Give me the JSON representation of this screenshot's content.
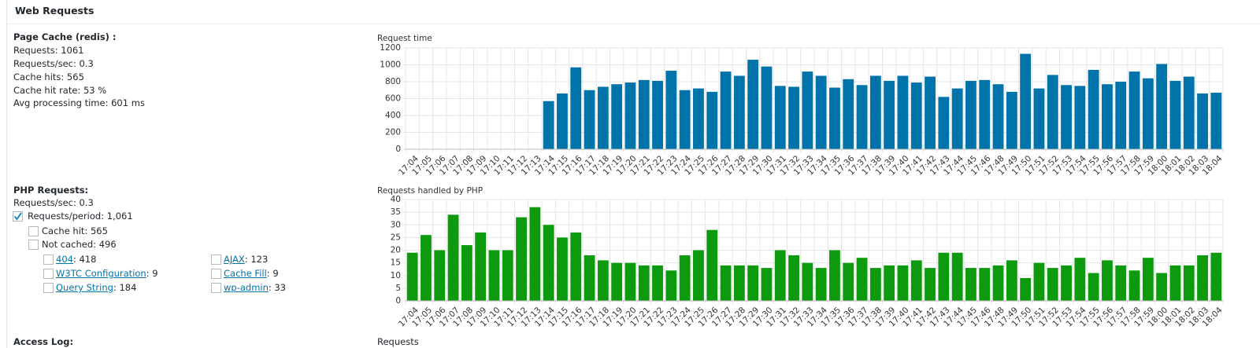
{
  "header": {
    "title": "Web Requests"
  },
  "page_cache": {
    "title": "Page Cache (redis) :",
    "lines": [
      "Requests: 1061",
      "Requests/sec: 0.3",
      "Cache hits: 565",
      "Cache hit rate: 53 %",
      "Avg processing time: 601 ms"
    ]
  },
  "php_requests": {
    "title": "PHP Requests:",
    "rate": "Requests/sec: 0.3",
    "period": "Requests/period: 1,061",
    "cache_hit": "Cache hit: 565",
    "not_cached": "Not cached: 496",
    "items": [
      {
        "link": "404",
        "text": ": 418"
      },
      {
        "link": "AJAX",
        "text": ": 123"
      },
      {
        "link": "W3TC Configuration",
        "text": ": 9"
      },
      {
        "link": "Cache Fill",
        "text": ": 9"
      },
      {
        "link": "Query String",
        "text": ": 184"
      },
      {
        "link": "wp-admin",
        "text": ": 33"
      }
    ]
  },
  "access_log": {
    "title": "Access Log:",
    "chart_title": "Requests"
  },
  "chart_data": [
    {
      "type": "bar",
      "title": "Request time",
      "color": "#0073aa",
      "grid": true,
      "categories": [
        "17:04",
        "17:05",
        "17:06",
        "17:07",
        "17:08",
        "17:09",
        "17:10",
        "17:11",
        "17:12",
        "17:13",
        "17:14",
        "17:15",
        "17:16",
        "17:17",
        "17:18",
        "17:19",
        "17:20",
        "17:21",
        "17:22",
        "17:23",
        "17:24",
        "17:25",
        "17:26",
        "17:27",
        "17:28",
        "17:29",
        "17:30",
        "17:31",
        "17:32",
        "17:33",
        "17:34",
        "17:35",
        "17:36",
        "17:37",
        "17:38",
        "17:39",
        "17:40",
        "17:41",
        "17:42",
        "17:43",
        "17:44",
        "17:45",
        "17:46",
        "17:48",
        "17:49",
        "17:50",
        "17:51",
        "17:52",
        "17:53",
        "17:54",
        "17:55",
        "17:56",
        "17:57",
        "17:58",
        "17:59",
        "18:00",
        "18:01",
        "18:02",
        "18:03",
        "18:04"
      ],
      "values": [
        null,
        null,
        null,
        null,
        null,
        null,
        null,
        null,
        null,
        null,
        570,
        660,
        970,
        700,
        740,
        770,
        790,
        820,
        810,
        930,
        700,
        720,
        680,
        920,
        870,
        1060,
        980,
        750,
        740,
        920,
        870,
        730,
        830,
        760,
        870,
        810,
        870,
        790,
        860,
        620,
        720,
        810,
        820,
        770,
        680,
        1130,
        720,
        880,
        760,
        750,
        940,
        770,
        800,
        920,
        840,
        1010,
        810,
        860,
        660,
        670
      ],
      "ylim": [
        0,
        1200
      ],
      "yticks": [
        0,
        200,
        400,
        600,
        800,
        1000,
        1200
      ]
    },
    {
      "type": "bar",
      "title": "Requests handled by PHP",
      "color": "#0e9a0e",
      "grid": true,
      "categories": [
        "17:04",
        "17:05",
        "17:06",
        "17:07",
        "17:08",
        "17:09",
        "17:10",
        "17:11",
        "17:12",
        "17:13",
        "17:14",
        "17:15",
        "17:16",
        "17:17",
        "17:18",
        "17:19",
        "17:20",
        "17:21",
        "17:22",
        "17:23",
        "17:24",
        "17:25",
        "17:26",
        "17:27",
        "17:28",
        "17:29",
        "17:30",
        "17:31",
        "17:32",
        "17:33",
        "17:34",
        "17:35",
        "17:36",
        "17:37",
        "17:38",
        "17:39",
        "17:40",
        "17:41",
        "17:42",
        "17:43",
        "17:44",
        "17:45",
        "17:46",
        "17:48",
        "17:49",
        "17:50",
        "17:51",
        "17:52",
        "17:53",
        "17:54",
        "17:55",
        "17:56",
        "17:57",
        "17:58",
        "17:59",
        "18:00",
        "18:01",
        "18:02",
        "18:03",
        "18:04"
      ],
      "values": [
        19,
        26,
        20,
        34,
        22,
        27,
        20,
        20,
        33,
        37,
        30,
        25,
        27,
        18,
        16,
        15,
        15,
        14,
        14,
        12,
        18,
        20,
        28,
        14,
        14,
        14,
        13,
        20,
        18,
        15,
        13,
        20,
        15,
        17,
        13,
        14,
        14,
        16,
        13,
        19,
        19,
        13,
        13,
        14,
        16,
        9,
        15,
        13,
        14,
        17,
        11,
        16,
        14,
        12,
        17,
        11,
        14,
        14,
        18,
        19
      ],
      "ylim": [
        0,
        40
      ],
      "yticks": [
        0,
        5,
        10,
        15,
        20,
        25,
        30,
        35,
        40
      ]
    }
  ]
}
